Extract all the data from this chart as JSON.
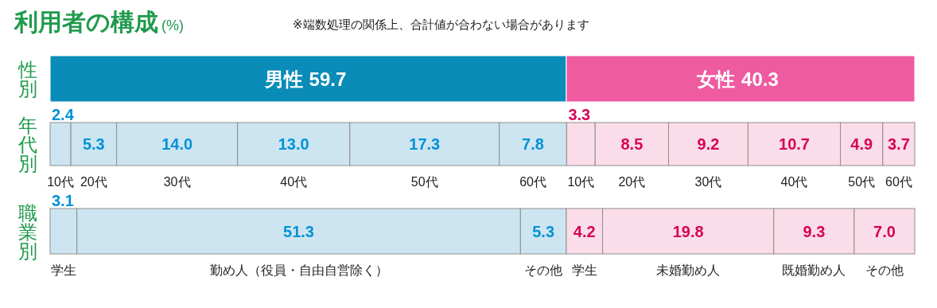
{
  "chart_data": [
    {
      "type": "bar",
      "orientation": "horizontal",
      "stacked": true,
      "title": "利用者の構成",
      "subtitle": "(%)",
      "annotations": [
        "※端数処理の関係上、合計値が合わない場合があります"
      ],
      "categories": [
        "性別"
      ],
      "series": [
        {
          "name": "男性",
          "color": "#0a8cb8",
          "values": [
            59.7
          ],
          "value_labels": [
            "59.7"
          ]
        },
        {
          "name": "女性",
          "color": "#ee5ba0",
          "values": [
            40.3
          ],
          "value_labels": [
            "40.3"
          ]
        }
      ]
    },
    {
      "type": "bar",
      "orientation": "horizontal",
      "stacked": true,
      "categories": [
        "年代別"
      ],
      "series": [
        {
          "name": "10代",
          "color": "#cde5f0",
          "values": [
            2.4
          ],
          "value_labels": [
            "2.4"
          ]
        },
        {
          "name": "20代",
          "color": "#cde5f0",
          "values": [
            5.3
          ],
          "value_labels": [
            "5.3"
          ]
        },
        {
          "name": "30代",
          "color": "#cde5f0",
          "values": [
            14.0
          ],
          "value_labels": [
            "14.0"
          ]
        },
        {
          "name": "40代",
          "color": "#cde5f0",
          "values": [
            13.0
          ],
          "value_labels": [
            "13.0"
          ]
        },
        {
          "name": "50代",
          "color": "#cde5f0",
          "values": [
            17.3
          ],
          "value_labels": [
            "17.3"
          ]
        },
        {
          "name": "60代",
          "color": "#cde5f0",
          "values": [
            7.8
          ],
          "value_labels": [
            "7.8"
          ]
        },
        {
          "name": "10代",
          "color": "#fbdde9",
          "values": [
            3.3
          ],
          "value_labels": [
            "3.3"
          ]
        },
        {
          "name": "20代",
          "color": "#fbdde9",
          "values": [
            8.5
          ],
          "value_labels": [
            "8.5"
          ]
        },
        {
          "name": "30代",
          "color": "#fbdde9",
          "values": [
            9.2
          ],
          "value_labels": [
            "9.2"
          ]
        },
        {
          "name": "40代",
          "color": "#fbdde9",
          "values": [
            10.7
          ],
          "value_labels": [
            "10.7"
          ]
        },
        {
          "name": "50代",
          "color": "#fbdde9",
          "values": [
            4.9
          ],
          "value_labels": [
            "4.9"
          ]
        },
        {
          "name": "60代",
          "color": "#fbdde9",
          "values": [
            3.7
          ],
          "value_labels": [
            "3.7"
          ]
        }
      ]
    },
    {
      "type": "bar",
      "orientation": "horizontal",
      "stacked": true,
      "categories": [
        "職業別"
      ],
      "series": [
        {
          "name": "学生",
          "color": "#cde5f0",
          "values": [
            3.1
          ],
          "value_labels": [
            "3.1"
          ]
        },
        {
          "name": "勤め人（役員・自由自営除く）",
          "color": "#cde5f0",
          "values": [
            51.3
          ],
          "value_labels": [
            "51.3"
          ]
        },
        {
          "name": "その他",
          "color": "#cde5f0",
          "values": [
            5.3
          ],
          "value_labels": [
            "5.3"
          ]
        },
        {
          "name": "学生",
          "color": "#fbdde9",
          "values": [
            4.2
          ],
          "value_labels": [
            "4.2"
          ]
        },
        {
          "name": "未婚勤め人",
          "color": "#fbdde9",
          "values": [
            19.8
          ],
          "value_labels": [
            "19.8"
          ]
        },
        {
          "name": "既婚勤め人",
          "color": "#fbdde9",
          "values": [
            9.3
          ],
          "value_labels": [
            "9.3"
          ]
        },
        {
          "name": "その他",
          "color": "#fbdde9",
          "values": [
            7.0
          ],
          "value_labels": [
            "7.0"
          ]
        }
      ]
    }
  ]
}
